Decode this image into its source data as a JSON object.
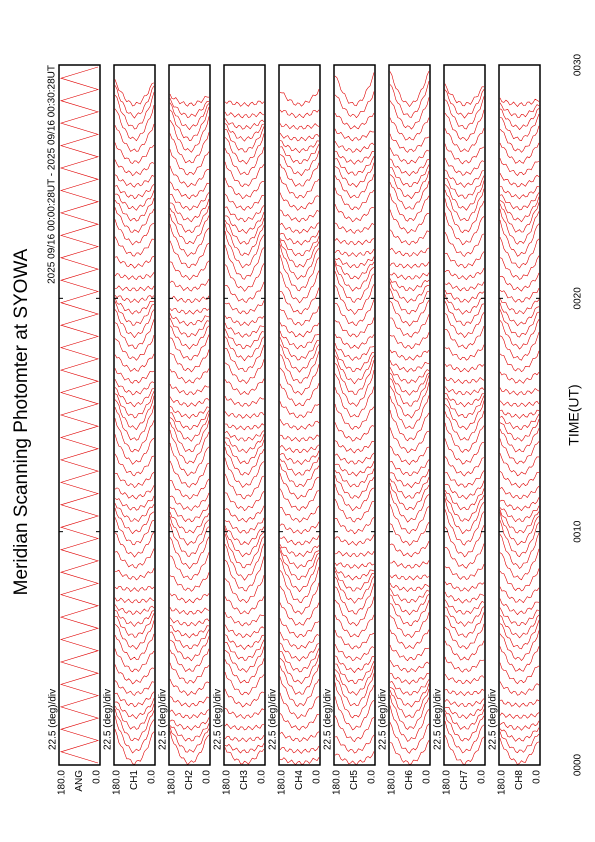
{
  "title": "Meridian Scanning Photomter at SYOWA",
  "subtitle": "2025 09/16 00:00:28UT - 2025 09/16 00:30:28UT",
  "time_axis": {
    "label": "TIME(UT)",
    "ticks": [
      "0000",
      "0010",
      "0020",
      "0030"
    ]
  },
  "panels": [
    {
      "channel": "ANG",
      "top": "180.0",
      "bottom": "0.0",
      "scale": "22.5 (deg)/div"
    },
    {
      "channel": "CH1",
      "top": "180.0",
      "bottom": "0.0",
      "scale": "22.5 (deg)/div"
    },
    {
      "channel": "CH2",
      "top": "180.0",
      "bottom": "0.0",
      "scale": "22.5 (deg)/div"
    },
    {
      "channel": "CH3",
      "top": "180.0",
      "bottom": "0.0",
      "scale": "22.5 (deg)/div"
    },
    {
      "channel": "CH4",
      "top": "180.0",
      "bottom": "0.0",
      "scale": "22.5 (deg)/div"
    },
    {
      "channel": "CH5",
      "top": "180.0",
      "bottom": "0.0",
      "scale": "22.5 (deg)/div"
    },
    {
      "channel": "CH6",
      "top": "180.0",
      "bottom": "0.0",
      "scale": "22.5 (deg)/div"
    },
    {
      "channel": "CH7",
      "top": "180.0",
      "bottom": "0.0",
      "scale": "22.5 (deg)/div"
    },
    {
      "channel": "CH8",
      "top": "180.0",
      "bottom": "0.0",
      "scale": "22.5 (deg)/div"
    }
  ]
}
